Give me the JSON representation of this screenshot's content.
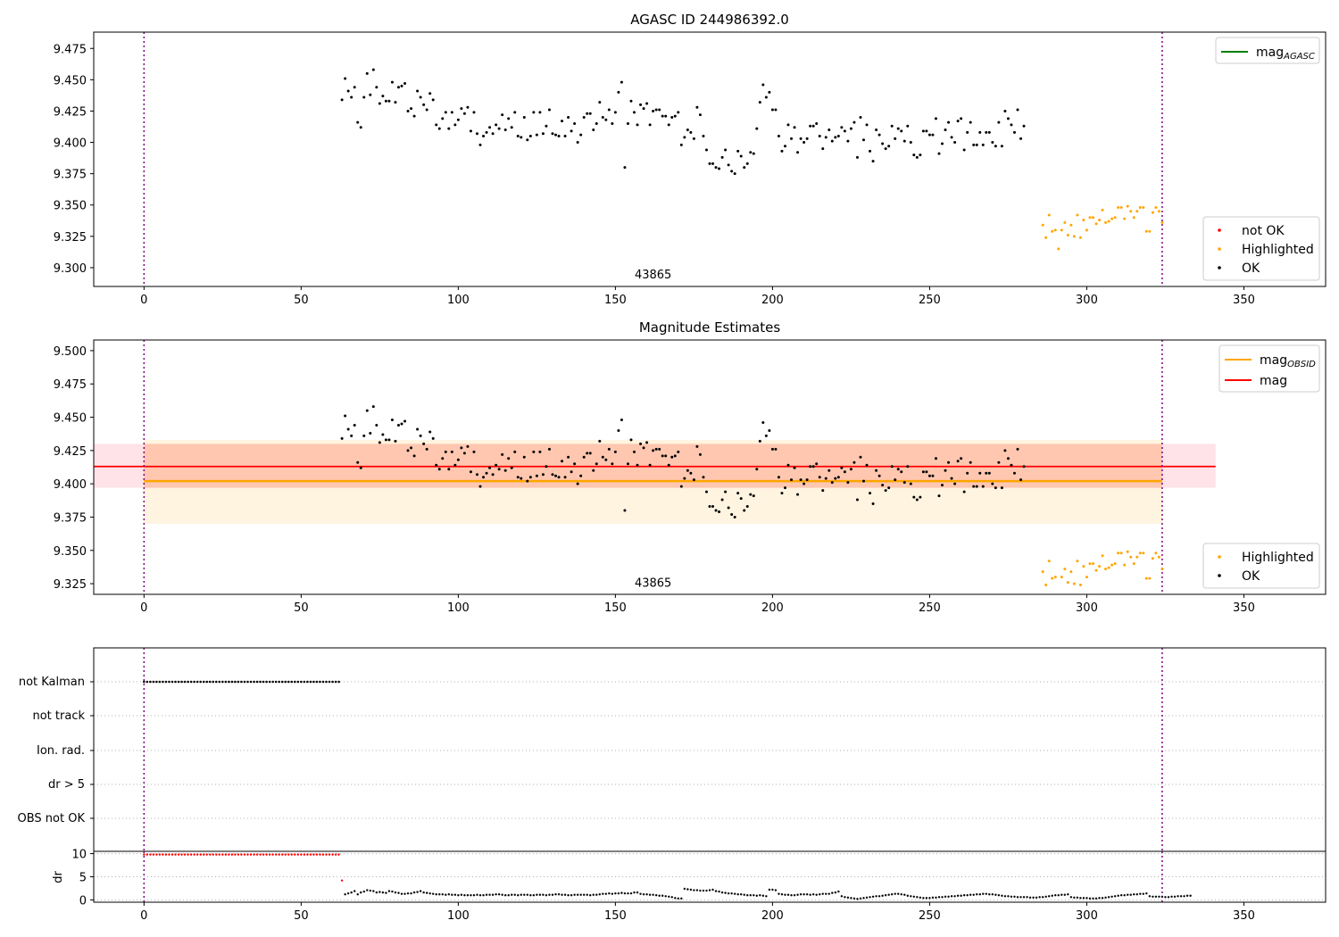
{
  "chart_data": [
    {
      "type": "scatter",
      "title": "AGASC ID 244986392.0",
      "xlim": [
        -16,
        376
      ],
      "ylim": [
        9.285,
        9.488
      ],
      "x_ticks": [
        0,
        50,
        100,
        150,
        200,
        250,
        300,
        350
      ],
      "y_ticks": [
        9.3,
        9.325,
        9.35,
        9.375,
        9.4,
        9.425,
        9.45,
        9.475
      ],
      "vlines": [
        0,
        324
      ],
      "annotation": {
        "text": "43865",
        "x": 162,
        "y": 9.295
      },
      "legend_lines": [
        {
          "label": "mag",
          "sub": "AGASC",
          "color": "#008000",
          "position": "top-right"
        }
      ],
      "legend_points": [
        {
          "label": "not OK",
          "color": "#ff0000"
        },
        {
          "label": "Highlighted",
          "color": "#ffa500"
        },
        {
          "label": "OK",
          "color": "#000000"
        }
      ],
      "series": [
        {
          "name": "OK",
          "color": "#000000",
          "x_start": 63,
          "x_step": 1,
          "values": [
            9.434,
            9.451,
            9.441,
            9.436,
            9.444,
            9.416,
            9.412,
            9.436,
            9.455,
            9.438,
            9.458,
            9.444,
            9.431,
            9.437,
            9.433,
            9.433,
            9.448,
            9.432,
            9.444,
            9.445,
            9.447,
            9.425,
            9.427,
            9.421,
            9.441,
            9.436,
            9.43,
            9.426,
            9.439,
            9.434,
            9.414,
            9.411,
            9.419,
            9.424,
            9.411,
            9.424,
            9.414,
            9.418,
            9.427,
            9.423,
            9.428,
            9.409,
            9.424,
            9.407,
            9.398,
            9.405,
            9.408,
            9.412,
            9.407,
            9.414,
            9.411,
            9.422,
            9.41,
            9.419,
            9.412,
            9.424,
            9.405,
            9.404,
            9.42,
            9.402,
            9.405,
            9.424,
            9.406,
            9.424,
            9.407,
            9.413,
            9.426,
            9.407,
            9.406,
            9.405,
            9.417,
            9.405,
            9.42,
            9.409,
            9.415,
            9.4,
            9.406,
            9.42,
            9.423,
            9.423,
            9.41,
            9.415,
            9.432,
            9.42,
            9.418,
            9.426,
            9.415,
            9.424,
            9.44,
            9.448,
            9.38,
            9.415,
            9.433,
            9.424,
            9.414,
            9.43,
            9.427,
            9.431,
            9.414,
            9.425,
            9.426,
            9.426,
            9.421,
            9.421,
            9.414,
            9.42,
            9.421,
            9.424,
            9.398,
            9.404,
            9.41,
            9.408,
            9.403,
            9.428,
            9.422,
            9.405,
            9.394,
            9.383,
            9.383,
            9.38,
            9.379,
            9.388,
            9.394,
            9.382,
            9.377,
            9.375,
            9.393,
            9.389,
            9.38,
            9.383,
            9.392,
            9.391,
            9.411,
            9.432,
            9.446,
            9.436,
            9.44,
            9.426,
            9.426,
            9.405,
            9.393,
            9.397,
            9.414,
            9.403,
            9.412,
            9.392,
            9.403,
            9.4,
            9.403,
            9.413,
            9.413,
            9.415,
            9.405,
            9.395,
            9.404,
            9.41,
            9.401,
            9.404,
            9.405,
            9.412,
            9.409,
            9.401,
            9.411,
            9.416,
            9.388,
            9.42,
            9.402,
            9.414,
            9.393,
            9.385,
            9.41,
            9.406,
            9.399,
            9.395,
            9.397,
            9.413,
            9.403,
            9.411,
            9.409,
            9.401,
            9.413,
            9.4,
            9.39,
            9.388,
            9.39,
            9.409,
            9.409,
            9.406,
            9.406,
            9.419,
            9.391,
            9.399,
            9.41,
            9.416,
            9.404,
            9.4,
            9.417,
            9.419,
            9.394,
            9.408,
            9.416,
            9.398,
            9.398,
            9.408,
            9.398,
            9.408,
            9.408,
            9.4,
            9.397,
            9.416,
            9.397,
            9.425,
            9.419,
            9.414,
            9.408,
            9.426,
            9.403,
            9.413
          ]
        },
        {
          "name": "Highlighted",
          "color": "#ffa500",
          "x_start": 286,
          "x_step": 1,
          "values": [
            9.334,
            9.324,
            9.342,
            9.329,
            9.33,
            9.315,
            9.33,
            9.336,
            9.326,
            9.334,
            9.325,
            9.342,
            9.324,
            9.338,
            9.33,
            9.34,
            9.34,
            9.335,
            9.338,
            9.346,
            9.336,
            9.337,
            9.339,
            9.34,
            9.348,
            9.348,
            9.339,
            9.349,
            9.345,
            9.34,
            9.345,
            9.348,
            9.348,
            9.329,
            9.329,
            9.344,
            9.348,
            9.345,
            9.336
          ]
        }
      ]
    },
    {
      "type": "scatter",
      "title": "Magnitude Estimates",
      "xlim": [
        -16,
        376
      ],
      "ylim": [
        9.317,
        9.508
      ],
      "x_ticks": [
        0,
        50,
        100,
        150,
        200,
        250,
        300,
        350
      ],
      "y_ticks": [
        9.325,
        9.35,
        9.375,
        9.4,
        9.425,
        9.45,
        9.475,
        9.5
      ],
      "vlines": [
        0,
        324
      ],
      "annotation": {
        "text": "43865",
        "x": 162,
        "y": 9.326
      },
      "bands": [
        {
          "x0": -16,
          "x1": 341,
          "y0": 9.397,
          "y1": 9.43,
          "color": "#ffc0cb",
          "opacity": 0.45
        },
        {
          "x0": 0,
          "x1": 324,
          "y0": 9.37,
          "y1": 9.433,
          "color": "#ffa500",
          "opacity": 0.12
        },
        {
          "x0": 0,
          "x1": 324,
          "y0": 9.397,
          "y1": 9.43,
          "color": "#ff7f50",
          "opacity": 0.22
        }
      ],
      "hlines": [
        {
          "label": "mag",
          "y": 9.413,
          "x0": -16,
          "x1": 341,
          "color": "#ff0000"
        },
        {
          "label": "mag",
          "sub": "OBSID",
          "y": 9.402,
          "x0": 0,
          "x1": 324,
          "color": "#ffa500"
        }
      ],
      "legend_lines": [
        {
          "label": "mag",
          "sub": "OBSID",
          "color": "#ffa500",
          "position": "top-right"
        },
        {
          "label": "mag",
          "color": "#ff0000"
        }
      ],
      "legend_points": [
        {
          "label": "Highlighted",
          "color": "#ffa500"
        },
        {
          "label": "OK",
          "color": "#000000"
        }
      ],
      "series": [
        {
          "name": "OK",
          "color": "#000000",
          "x_start": 63,
          "x_step": 1,
          "same_as_panel": 0
        },
        {
          "name": "Highlighted",
          "color": "#ffa500",
          "x_start": 286,
          "x_step": 1,
          "same_as_panel": 0
        }
      ]
    },
    {
      "type": "scatter",
      "categories": [
        "not Kalman",
        "not track",
        "Ion. rad.",
        "dr > 5",
        "OBS not OK"
      ],
      "xlim": [
        -16,
        376
      ],
      "vlines": [
        0,
        324
      ],
      "flags": [
        {
          "category": "not Kalman",
          "x0": 0,
          "x1": 62,
          "step": 1,
          "color": "#000000"
        }
      ]
    },
    {
      "type": "scatter",
      "ylabel": "dr",
      "xlim": [
        -16,
        376
      ],
      "ylim": [
        -0.5,
        10.5
      ],
      "x_ticks": [
        0,
        50,
        100,
        150,
        200,
        250,
        300,
        350
      ],
      "y_ticks": [
        0,
        5,
        10
      ],
      "vlines": [
        0,
        324
      ],
      "series": [
        {
          "name": "dr > 5",
          "color": "#ff0000",
          "x_start": 0,
          "x_step": 1,
          "values": [
            9.8,
            9.8,
            9.8,
            9.8,
            9.8,
            9.8,
            9.8,
            9.8,
            9.8,
            9.8,
            9.8,
            9.8,
            9.8,
            9.8,
            9.8,
            9.8,
            9.8,
            9.8,
            9.8,
            9.8,
            9.8,
            9.8,
            9.8,
            9.8,
            9.8,
            9.8,
            9.8,
            9.8,
            9.8,
            9.8,
            9.8,
            9.8,
            9.8,
            9.8,
            9.8,
            9.8,
            9.8,
            9.8,
            9.8,
            9.8,
            9.8,
            9.8,
            9.8,
            9.8,
            9.8,
            9.8,
            9.8,
            9.8,
            9.8,
            9.8,
            9.8,
            9.8,
            9.8,
            9.8,
            9.8,
            9.8,
            9.8,
            9.8,
            9.8,
            9.8,
            9.8,
            9.8,
            9.8,
            4.2
          ]
        },
        {
          "name": "dr",
          "color": "#000000",
          "x_start": 64,
          "x_step": 1,
          "values": [
            1.2,
            1.4,
            1.6,
            1.9,
            1.2,
            1.6,
            1.8,
            2.1,
            2.0,
            1.9,
            1.6,
            1.7,
            1.6,
            1.5,
            1.9,
            1.8,
            1.6,
            1.5,
            1.3,
            1.3,
            1.4,
            1.4,
            1.6,
            1.7,
            1.9,
            1.6,
            1.5,
            1.4,
            1.3,
            1.2,
            1.2,
            1.2,
            1.1,
            1.2,
            1.1,
            1.1,
            1.0,
            1.1,
            1.0,
            1.0,
            1.0,
            1.0,
            1.1,
            1.0,
            1.0,
            1.1,
            1.1,
            1.1,
            1.2,
            1.2,
            1.1,
            1.0,
            1.0,
            1.1,
            1.1,
            1.0,
            1.1,
            1.1,
            1.1,
            1.0,
            1.0,
            1.1,
            1.1,
            1.1,
            1.0,
            1.1,
            1.1,
            1.2,
            1.2,
            1.1,
            1.1,
            1.0,
            1.0,
            1.1,
            1.1,
            1.1,
            1.1,
            1.1,
            1.0,
            1.1,
            1.1,
            1.2,
            1.3,
            1.3,
            1.4,
            1.3,
            1.4,
            1.4,
            1.5,
            1.4,
            1.4,
            1.4,
            1.6,
            1.6,
            1.3,
            1.2,
            1.2,
            1.1,
            1.1,
            1.0,
            0.9,
            0.9,
            0.8,
            0.7,
            0.6,
            0.4,
            0.3,
            0.3,
            2.4,
            2.3,
            2.2,
            2.1,
            2.1,
            2.0,
            2.0,
            2.0,
            2.1,
            2.2,
            1.9,
            1.8,
            1.6,
            1.5,
            1.4,
            1.4,
            1.3,
            1.2,
            1.2,
            1.1,
            1.0,
            1.0,
            1.0,
            0.9,
            1.0,
            0.9,
            0.8,
            2.2,
            2.2,
            2.1,
            1.3,
            1.2,
            1.1,
            1.1,
            1.0,
            1.0,
            1.1,
            1.2,
            1.2,
            1.2,
            1.1,
            1.2,
            1.1,
            1.2,
            1.3,
            1.3,
            1.3,
            1.5,
            1.6,
            1.8,
            0.8,
            0.6,
            0.5,
            0.4,
            0.3,
            0.2,
            0.3,
            0.4,
            0.5,
            0.6,
            0.7,
            0.8,
            0.8,
            0.9,
            1.0,
            1.1,
            1.2,
            1.3,
            1.3,
            1.2,
            1.1,
            0.9,
            0.8,
            0.7,
            0.6,
            0.5,
            0.4,
            0.4,
            0.4,
            0.5,
            0.5,
            0.6,
            0.6,
            0.7,
            0.7,
            0.8,
            0.8,
            0.9,
            0.9,
            1.0,
            1.0,
            1.1,
            1.1,
            1.2,
            1.2,
            1.3,
            1.3,
            1.2,
            1.2,
            1.1,
            1.0,
            0.9,
            0.8,
            0.8,
            0.7,
            0.7,
            0.6,
            0.6,
            0.6,
            0.6,
            0.5,
            0.5,
            0.5,
            0.6,
            0.6,
            0.7,
            0.8,
            0.9,
            1.0,
            1.0,
            1.1,
            1.1,
            1.2,
            0.6,
            0.5,
            0.5,
            0.4,
            0.4,
            0.4,
            0.3,
            0.3,
            0.3,
            0.4,
            0.4,
            0.5,
            0.6,
            0.7,
            0.8,
            0.9,
            1.0,
            1.0,
            1.1,
            1.1,
            1.2,
            1.2,
            1.3,
            1.3,
            1.4,
            0.8,
            0.7,
            0.7,
            0.7,
            0.7,
            0.6,
            0.6,
            0.7,
            0.7,
            0.8,
            0.8,
            0.8,
            0.9,
            0.9
          ]
        }
      ]
    }
  ]
}
